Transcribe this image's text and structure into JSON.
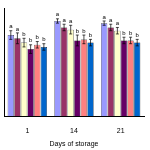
{
  "chart_data": {
    "type": "bar",
    "x_label": "Days of storage",
    "categories": [
      "1",
      "14",
      "21"
    ],
    "ylim": [
      0,
      100
    ],
    "grid": false,
    "tick_labels": "x",
    "series": [
      {
        "color": "#9999ff",
        "values": [
          75,
          88,
          86
        ],
        "errors": [
          4,
          2,
          2
        ],
        "letters": [
          "a",
          "a",
          "a"
        ]
      },
      {
        "color": "#993366",
        "values": [
          72,
          82,
          82
        ],
        "errors": [
          5,
          3,
          3
        ],
        "letters": [
          "a",
          "a",
          "a"
        ]
      },
      {
        "color": "#ffffcc",
        "values": [
          68,
          80,
          79
        ],
        "errors": [
          4,
          4,
          3
        ],
        "letters": [
          "b",
          "a",
          "a"
        ]
      },
      {
        "color": "#660066",
        "values": [
          62,
          70,
          70
        ],
        "errors": [
          4,
          5,
          3
        ],
        "letters": [
          "b",
          "b",
          "b"
        ]
      },
      {
        "color": "#ff8080",
        "values": [
          66,
          71,
          70
        ],
        "errors": [
          3,
          4,
          3
        ],
        "letters": [
          "b",
          "b",
          "b"
        ]
      },
      {
        "color": "#0066cc",
        "values": [
          64,
          68,
          68
        ],
        "errors": [
          3,
          3,
          3
        ],
        "letters": [
          "b",
          "b",
          "b"
        ]
      }
    ]
  }
}
